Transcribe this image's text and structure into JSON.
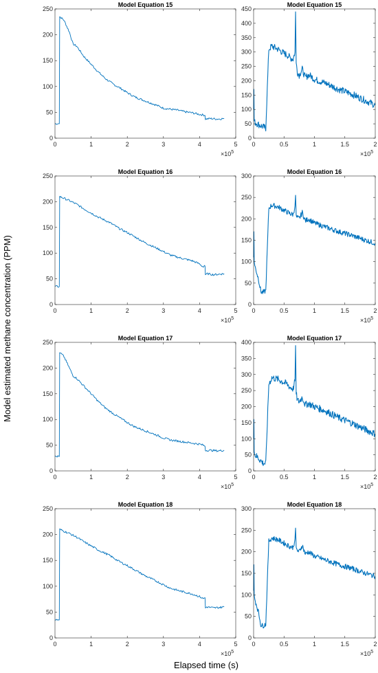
{
  "figure": {
    "ylabel": "Model estimated methane concentration (PPM)",
    "xlabel": "Elapsed time (s)",
    "line_color": "#0072BD",
    "axis_color": "#262626"
  },
  "chart_data": [
    {
      "type": "line",
      "title": "Model Equation 15",
      "xlim": [
        0,
        5
      ],
      "ylim": [
        0,
        250
      ],
      "xticks": [
        0,
        1,
        2,
        3,
        4,
        5
      ],
      "yticks": [
        0,
        50,
        100,
        150,
        200,
        250
      ],
      "x_multiplier": "×10",
      "x_exponent": "5",
      "x": [
        0,
        0.12,
        0.13,
        0.17,
        0.25,
        0.4,
        0.5,
        0.6,
        0.8,
        1.0,
        1.2,
        1.4,
        1.6,
        1.8,
        2.0,
        2.2,
        2.5,
        2.8,
        3.0,
        3.2,
        3.4,
        3.6,
        3.8,
        4.0,
        4.1,
        4.15,
        4.16,
        4.3,
        4.5,
        4.68
      ],
      "y": [
        28,
        28,
        235,
        233,
        228,
        205,
        182,
        178,
        158,
        143,
        128,
        115,
        105,
        97,
        88,
        80,
        72,
        64,
        58,
        56,
        54,
        51,
        49,
        46,
        45,
        44,
        37,
        38,
        37,
        38
      ],
      "noise": 2
    },
    {
      "type": "line",
      "title": "Model Equation 15",
      "xlim": [
        0,
        2
      ],
      "ylim": [
        0,
        450
      ],
      "xticks": [
        0,
        0.5,
        1,
        1.5,
        2
      ],
      "yticks": [
        0,
        50,
        100,
        150,
        200,
        250,
        300,
        350,
        400,
        450
      ],
      "x_multiplier": "×10",
      "x_exponent": "5",
      "x": [
        0,
        0.005,
        0.01,
        0.02,
        0.08,
        0.15,
        0.2,
        0.25,
        0.3,
        0.4,
        0.5,
        0.55,
        0.6,
        0.65,
        0.68,
        0.69,
        0.7,
        0.72,
        0.75,
        0.8,
        0.85,
        0.9,
        0.95,
        1.0,
        1.2,
        1.4,
        1.6,
        1.8,
        2.0
      ],
      "y": [
        100,
        170,
        60,
        55,
        48,
        40,
        35,
        310,
        320,
        310,
        295,
        290,
        280,
        275,
        300,
        440,
        260,
        230,
        220,
        240,
        210,
        220,
        215,
        205,
        190,
        170,
        155,
        135,
        115
      ],
      "noise": 12
    },
    {
      "type": "line",
      "title": "Model Equation 16",
      "xlim": [
        0,
        5
      ],
      "ylim": [
        0,
        250
      ],
      "xticks": [
        0,
        1,
        2,
        3,
        4,
        5
      ],
      "yticks": [
        0,
        50,
        100,
        150,
        200,
        250
      ],
      "x_multiplier": "×10",
      "x_exponent": "5",
      "x": [
        0,
        0.12,
        0.13,
        0.2,
        0.4,
        0.6,
        0.8,
        1.0,
        1.2,
        1.5,
        1.8,
        2.0,
        2.2,
        2.5,
        2.8,
        3.0,
        3.2,
        3.5,
        3.8,
        4.0,
        4.1,
        4.15,
        4.16,
        4.2,
        4.4,
        4.68
      ],
      "y": [
        35,
        35,
        210,
        208,
        202,
        195,
        186,
        178,
        170,
        160,
        147,
        140,
        132,
        120,
        110,
        103,
        96,
        90,
        85,
        79,
        73,
        75,
        58,
        60,
        58,
        60
      ],
      "noise": 2
    },
    {
      "type": "line",
      "title": "Model Equation 16",
      "xlim": [
        0,
        2
      ],
      "ylim": [
        0,
        300
      ],
      "xticks": [
        0,
        0.5,
        1,
        1.5,
        2
      ],
      "yticks": [
        0,
        50,
        100,
        150,
        200,
        250,
        300
      ],
      "x_multiplier": "×10",
      "x_exponent": "5",
      "x": [
        0,
        0.005,
        0.01,
        0.02,
        0.08,
        0.12,
        0.15,
        0.2,
        0.25,
        0.3,
        0.4,
        0.5,
        0.6,
        0.65,
        0.68,
        0.69,
        0.7,
        0.75,
        0.8,
        0.85,
        0.9,
        1.0,
        1.2,
        1.4,
        1.6,
        1.8,
        2.0
      ],
      "y": [
        110,
        170,
        100,
        90,
        60,
        30,
        28,
        32,
        225,
        232,
        228,
        220,
        212,
        210,
        230,
        255,
        205,
        200,
        215,
        195,
        200,
        190,
        180,
        170,
        162,
        152,
        143
      ],
      "noise": 6
    },
    {
      "type": "line",
      "title": "Model Equation 17",
      "xlim": [
        0,
        5
      ],
      "ylim": [
        0,
        250
      ],
      "xticks": [
        0,
        1,
        2,
        3,
        4,
        5
      ],
      "yticks": [
        0,
        50,
        100,
        150,
        200,
        250
      ],
      "x_multiplier": "×10",
      "x_exponent": "5",
      "x": [
        0,
        0.12,
        0.13,
        0.17,
        0.25,
        0.4,
        0.5,
        0.6,
        0.8,
        1.0,
        1.2,
        1.4,
        1.6,
        1.8,
        2.0,
        2.2,
        2.5,
        2.8,
        3.0,
        3.2,
        3.4,
        3.6,
        3.8,
        4.0,
        4.1,
        4.15,
        4.16,
        4.3,
        4.5,
        4.68
      ],
      "y": [
        28,
        28,
        230,
        228,
        222,
        200,
        185,
        180,
        165,
        150,
        135,
        122,
        112,
        103,
        94,
        86,
        78,
        70,
        64,
        60,
        58,
        56,
        54,
        52,
        50,
        48,
        40,
        40,
        39,
        40
      ],
      "noise": 2
    },
    {
      "type": "line",
      "title": "Model Equation 17",
      "xlim": [
        0,
        2
      ],
      "ylim": [
        0,
        400
      ],
      "xticks": [
        0,
        0.5,
        1,
        1.5,
        2
      ],
      "yticks": [
        0,
        50,
        100,
        150,
        200,
        250,
        300,
        350,
        400
      ],
      "x_multiplier": "×10",
      "x_exponent": "5",
      "x": [
        0,
        0.005,
        0.01,
        0.02,
        0.08,
        0.15,
        0.2,
        0.25,
        0.3,
        0.4,
        0.5,
        0.55,
        0.6,
        0.65,
        0.68,
        0.69,
        0.7,
        0.72,
        0.75,
        0.8,
        0.85,
        0.9,
        0.95,
        1.0,
        1.2,
        1.4,
        1.6,
        1.8,
        2.0
      ],
      "y": [
        100,
        160,
        60,
        50,
        40,
        25,
        22,
        270,
        290,
        285,
        275,
        270,
        260,
        255,
        280,
        390,
        240,
        220,
        215,
        230,
        205,
        210,
        205,
        200,
        185,
        165,
        150,
        132,
        115
      ],
      "noise": 11
    },
    {
      "type": "line",
      "title": "Model Equation 18",
      "xlim": [
        0,
        5
      ],
      "ylim": [
        0,
        250
      ],
      "xticks": [
        0,
        1,
        2,
        3,
        4,
        5
      ],
      "yticks": [
        0,
        50,
        100,
        150,
        200,
        250
      ],
      "x_multiplier": "×10",
      "x_exponent": "5",
      "x": [
        0,
        0.12,
        0.13,
        0.2,
        0.4,
        0.6,
        0.8,
        1.0,
        1.2,
        1.5,
        1.8,
        2.0,
        2.2,
        2.5,
        2.8,
        3.0,
        3.2,
        3.5,
        3.8,
        4.0,
        4.1,
        4.15,
        4.16,
        4.2,
        4.4,
        4.68
      ],
      "y": [
        35,
        35,
        210,
        208,
        202,
        195,
        186,
        178,
        170,
        160,
        147,
        140,
        132,
        120,
        110,
        103,
        96,
        90,
        85,
        80,
        76,
        78,
        58,
        60,
        58,
        60
      ],
      "noise": 2
    },
    {
      "type": "line",
      "title": "Model Equation 18",
      "xlim": [
        0,
        2
      ],
      "ylim": [
        0,
        300
      ],
      "xticks": [
        0,
        0.5,
        1,
        1.5,
        2
      ],
      "yticks": [
        0,
        50,
        100,
        150,
        200,
        250,
        300
      ],
      "x_multiplier": "×10",
      "x_exponent": "5",
      "x": [
        0,
        0.005,
        0.01,
        0.02,
        0.08,
        0.12,
        0.15,
        0.2,
        0.25,
        0.3,
        0.4,
        0.5,
        0.6,
        0.65,
        0.68,
        0.69,
        0.7,
        0.75,
        0.8,
        0.85,
        0.9,
        1.0,
        1.2,
        1.4,
        1.6,
        1.8,
        2.0
      ],
      "y": [
        110,
        170,
        100,
        90,
        60,
        30,
        28,
        32,
        225,
        232,
        228,
        220,
        212,
        210,
        230,
        255,
        205,
        200,
        215,
        195,
        200,
        190,
        180,
        170,
        162,
        152,
        143
      ],
      "noise": 6
    }
  ]
}
